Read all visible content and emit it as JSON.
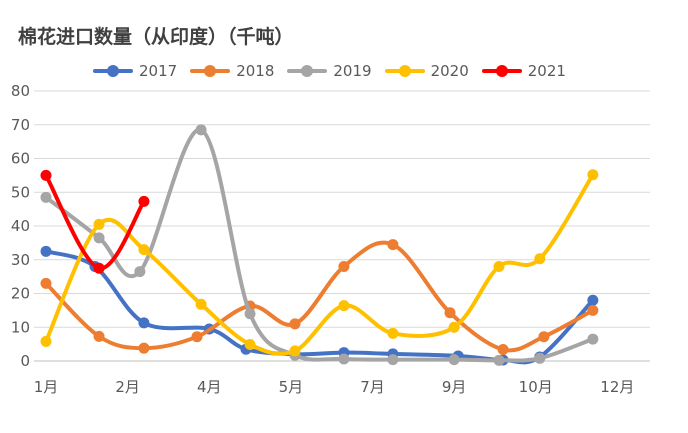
{
  "chart_data": {
    "type": "line",
    "title": "棉花进口数量（从印度）（千吨）",
    "ylim": [
      0,
      80
    ],
    "yticks": [
      0,
      10,
      20,
      30,
      40,
      50,
      60,
      70,
      80
    ],
    "xticks": [
      {
        "label": "1月",
        "month": 1
      },
      {
        "label": "2月",
        "month": 3
      },
      {
        "label": "4月",
        "month": 5
      },
      {
        "label": "5月",
        "month": 7
      },
      {
        "label": "7月",
        "month": 9
      },
      {
        "label": "9月",
        "month": 11
      },
      {
        "label": "10月",
        "month": 13
      },
      {
        "label": "12月",
        "month": 15
      }
    ],
    "xlim": [
      1,
      15.8
    ],
    "grid": true,
    "legend_position": "top",
    "series": [
      {
        "name": "2017",
        "color": "#4472C4",
        "points": [
          [
            1,
            32.5
          ],
          [
            2.2,
            28
          ],
          [
            3.4,
            11.3
          ],
          [
            5,
            9.5
          ],
          [
            5.9,
            3.5
          ],
          [
            7.1,
            2
          ],
          [
            8.3,
            2.5
          ],
          [
            9.5,
            2.1
          ],
          [
            11.1,
            1.5
          ],
          [
            12.2,
            0.3
          ],
          [
            13.1,
            1.2
          ],
          [
            14.4,
            18
          ]
        ]
      },
      {
        "name": "2018",
        "color": "#ED7D31",
        "points": [
          [
            1,
            23
          ],
          [
            2.3,
            7.3
          ],
          [
            3.4,
            3.8
          ],
          [
            4.7,
            7.2
          ],
          [
            6,
            16.3
          ],
          [
            7.1,
            11
          ],
          [
            8.3,
            28
          ],
          [
            9.5,
            34.5
          ],
          [
            10.9,
            14.3
          ],
          [
            12.2,
            3.4
          ],
          [
            13.2,
            7.2
          ],
          [
            14.4,
            15
          ]
        ]
      },
      {
        "name": "2019",
        "color": "#A5A5A5",
        "points": [
          [
            1,
            48.5
          ],
          [
            2.3,
            36.5
          ],
          [
            3.3,
            26.5
          ],
          [
            4.8,
            68.5
          ],
          [
            6,
            14
          ],
          [
            7.1,
            1.7
          ],
          [
            8.3,
            0.6
          ],
          [
            9.5,
            0.4
          ],
          [
            11,
            0.4
          ],
          [
            12.1,
            0.2
          ],
          [
            13.1,
            0.8
          ],
          [
            14.4,
            6.5
          ]
        ]
      },
      {
        "name": "2020",
        "color": "#FFC000",
        "points": [
          [
            1,
            5.8
          ],
          [
            2.3,
            40.5
          ],
          [
            3.4,
            33
          ],
          [
            4.8,
            16.8
          ],
          [
            6,
            4.9
          ],
          [
            7.1,
            3
          ],
          [
            8.3,
            16.4
          ],
          [
            9.5,
            8.2
          ],
          [
            11,
            10
          ],
          [
            12.1,
            28
          ],
          [
            13.1,
            30.3
          ],
          [
            14.4,
            55.2
          ]
        ]
      },
      {
        "name": "2021",
        "color": "#FF0000",
        "points": [
          [
            1,
            55
          ],
          [
            2.3,
            27.5
          ],
          [
            3.4,
            47.3
          ]
        ]
      }
    ]
  }
}
